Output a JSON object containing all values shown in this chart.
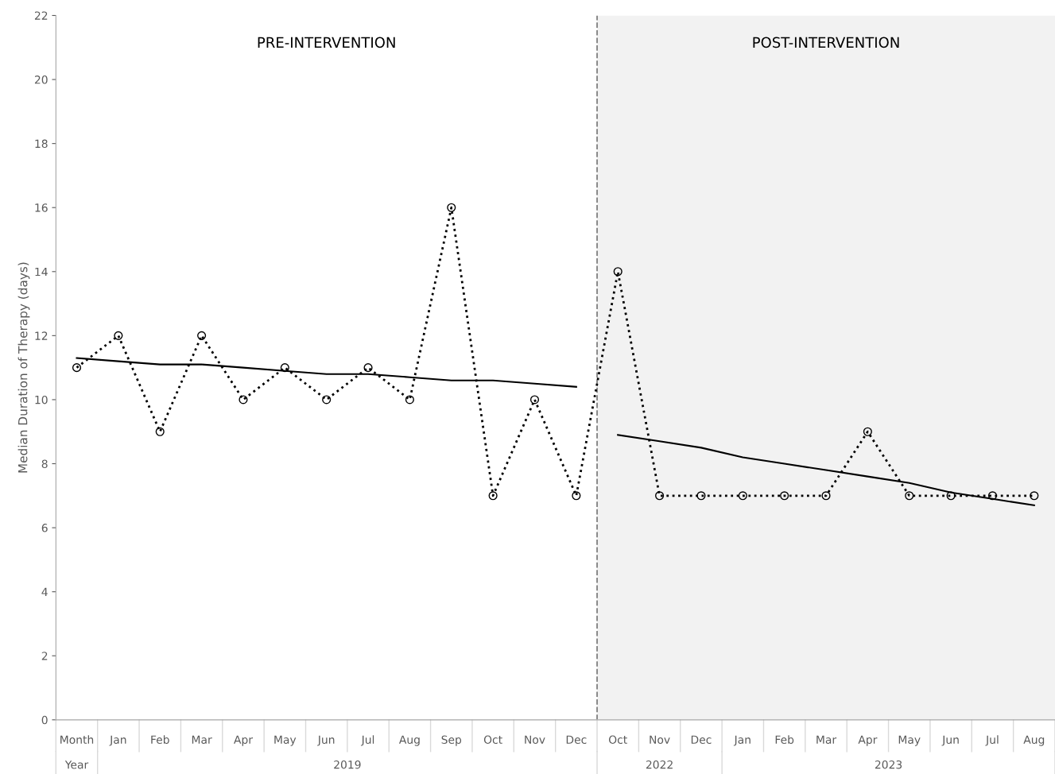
{
  "chart_data": {
    "type": "line",
    "ylabel": "Median Duration of Therapy (days)",
    "categories": [
      "Month",
      "Jan",
      "Feb",
      "Mar",
      "Apr",
      "May",
      "Jun",
      "Jul",
      "Aug",
      "Sep",
      "Oct",
      "Nov",
      "Dec",
      "Oct",
      "Nov",
      "Dec",
      "Jan",
      "Feb",
      "Mar",
      "Apr",
      "May",
      "Jun",
      "Jul",
      "Aug"
    ],
    "series": [
      {
        "color": "#000000",
        "marker": "circle",
        "line_style": "dotted",
        "values": [
          11,
          12,
          9,
          12,
          10,
          11,
          10,
          11,
          10,
          16,
          7,
          10,
          7,
          14,
          7,
          7,
          7,
          7,
          7,
          9,
          7,
          7,
          7,
          7
        ]
      },
      {
        "color": "#000000",
        "marker": "none",
        "line_style": "solid",
        "values": [
          11.3,
          11.2,
          11.1,
          11.1,
          11.0,
          10.9,
          10.8,
          10.8,
          10.7,
          10.6,
          10.6,
          10.5,
          10.4,
          null,
          null,
          null,
          null,
          null,
          null,
          null,
          null,
          null,
          null,
          null
        ]
      },
      {
        "color": "#000000",
        "marker": "none",
        "line_style": "solid",
        "values": [
          null,
          null,
          null,
          null,
          null,
          null,
          null,
          null,
          null,
          null,
          null,
          null,
          null,
          8.9,
          8.7,
          8.5,
          8.2,
          8.0,
          7.8,
          7.6,
          7.4,
          7.1,
          6.9,
          6.7
        ]
      }
    ],
    "ylim": [
      0,
      22
    ],
    "yticks": [
      0,
      2,
      4,
      6,
      8,
      10,
      12,
      14,
      16,
      18,
      20,
      22
    ],
    "grid": false,
    "legend": false,
    "annotations": [
      "PRE-INTERVENTION",
      "POST-INTERVENTION",
      "Year",
      "2019",
      "2022",
      "2023"
    ]
  }
}
